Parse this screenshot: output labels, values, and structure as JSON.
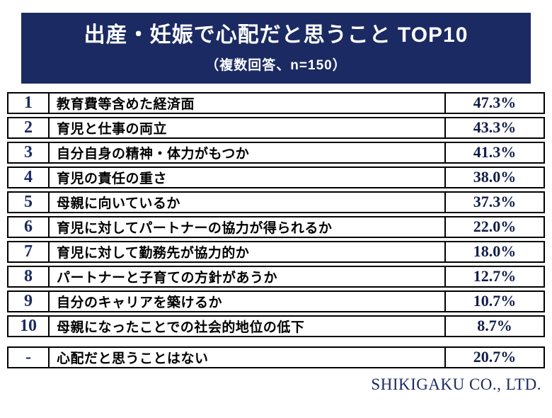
{
  "header": {
    "title": "出産・妊娠で心配だと思うこと TOP10",
    "subtitle": "（複数回答、n=150）"
  },
  "chart_data": {
    "type": "table",
    "title": "出産・妊娠で心配だと思うこと TOP10",
    "subtitle": "（複数回答、n=150）",
    "columns": [
      "rank",
      "item",
      "percent"
    ],
    "rows": [
      {
        "rank": "1",
        "item": "教育費等含めた経済面",
        "percent": "47.3%",
        "value": 47.3
      },
      {
        "rank": "2",
        "item": "育児と仕事の両立",
        "percent": "43.3%",
        "value": 43.3
      },
      {
        "rank": "3",
        "item": "自分自身の精神・体力がもつか",
        "percent": "41.3%",
        "value": 41.3
      },
      {
        "rank": "4",
        "item": "育児の責任の重さ",
        "percent": "38.0%",
        "value": 38.0
      },
      {
        "rank": "5",
        "item": "母親に向いているか",
        "percent": "37.3%",
        "value": 37.3
      },
      {
        "rank": "6",
        "item": "育児に対してパートナーの協力が得られるか",
        "percent": "22.0%",
        "value": 22.0
      },
      {
        "rank": "7",
        "item": "育児に対して勤務先が協力的か",
        "percent": "18.0%",
        "value": 18.0
      },
      {
        "rank": "8",
        "item": "パートナーと子育ての方針があうか",
        "percent": "12.7%",
        "value": 12.7
      },
      {
        "rank": "9",
        "item": "自分のキャリアを築けるか",
        "percent": "10.7%",
        "value": 10.7
      },
      {
        "rank": "10",
        "item": "母親になったことでの社会的地位の低下",
        "percent": "8.7%",
        "value": 8.7
      }
    ],
    "extra_row": {
      "rank": "-",
      "item": "心配だと思うことはない",
      "percent": "20.7%",
      "value": 20.7
    }
  },
  "footer": {
    "company": "SHIKIGAKU CO., LTD."
  },
  "colors": {
    "navy": "#1b2a63",
    "border": "#000000",
    "background": "#ffffff"
  }
}
